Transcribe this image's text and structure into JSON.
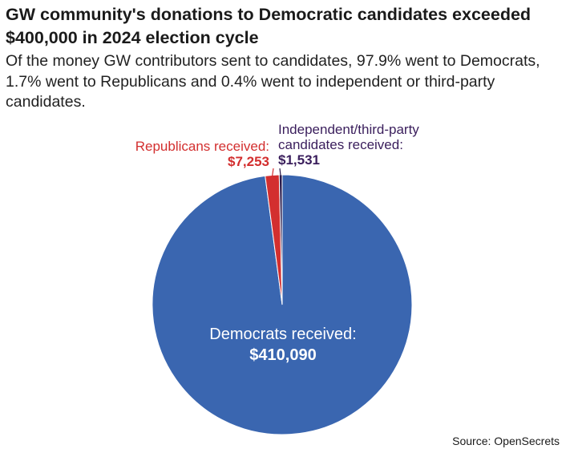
{
  "chart_data": {
    "type": "pie",
    "title": "GW community's donations to Democratic candidates exceeded $400,000 in 2024 election cycle",
    "subtitle": "Of the money GW contributors sent to candidates, 97.9% went to Democrats, 1.7% went to Republicans and 0.4% went to independent or third-party candidates.",
    "source": "Source: OpenSecrets",
    "slices": [
      {
        "key": "democrats",
        "label": "Democrats received:",
        "value_label": "$410,090",
        "value": 410090,
        "percent": 97.9,
        "color": "#3a66b0"
      },
      {
        "key": "republicans",
        "label": "Republicans received:",
        "value_label": "$7,253",
        "value": 7253,
        "percent": 1.7,
        "color": "#d32f2f"
      },
      {
        "key": "independent",
        "label": "Independent/third-party candidates received:",
        "label_lines": [
          "Independent/third-party",
          "candidates received:"
        ],
        "value_label": "$1,531",
        "value": 1531,
        "percent": 0.4,
        "color": "#2a1a4a"
      }
    ]
  }
}
